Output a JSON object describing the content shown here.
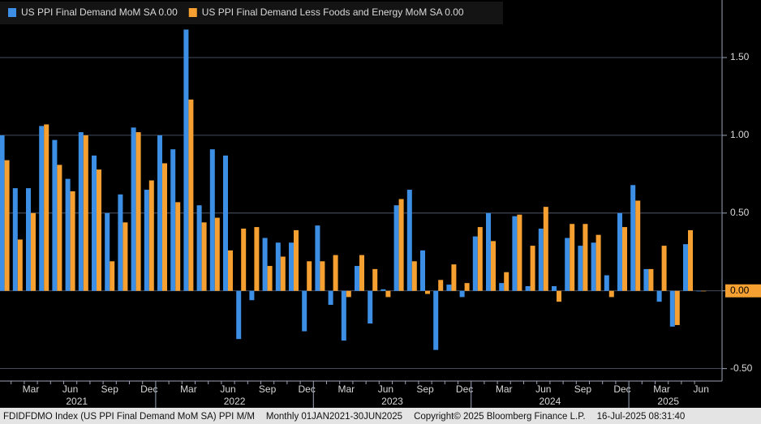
{
  "chart_data": {
    "type": "bar",
    "categories": [
      null,
      null,
      "Mar",
      null,
      null,
      "Jun",
      null,
      null,
      "Sep",
      null,
      null,
      "Dec",
      null,
      null,
      "Mar",
      null,
      null,
      "Jun",
      null,
      null,
      "Sep",
      null,
      null,
      "Dec",
      null,
      null,
      "Mar",
      null,
      null,
      "Jun",
      null,
      null,
      "Sep",
      null,
      null,
      "Dec",
      null,
      null,
      "Mar",
      null,
      null,
      "Jun",
      null,
      null,
      "Sep",
      null,
      null,
      "Dec",
      null,
      null,
      "Mar",
      null,
      null,
      "Jun"
    ],
    "years": [
      "2021",
      "2022",
      "2023",
      "2024",
      "2025"
    ],
    "series": [
      {
        "name": "US PPI Final Demand MoM SA 0.00",
        "color": "#3d8fe6",
        "values": [
          1.0,
          0.66,
          0.66,
          1.06,
          0.97,
          0.72,
          1.02,
          0.87,
          0.5,
          0.62,
          1.05,
          0.65,
          1.0,
          0.91,
          1.68,
          0.55,
          0.91,
          0.87,
          -0.31,
          -0.06,
          0.34,
          0.31,
          0.31,
          -0.26,
          0.42,
          -0.09,
          -0.32,
          0.16,
          -0.21,
          0.01,
          0.55,
          0.65,
          0.26,
          -0.38,
          0.04,
          -0.04,
          0.35,
          0.5,
          0.05,
          0.48,
          0.03,
          0.4,
          0.03,
          0.34,
          0.29,
          0.31,
          0.1,
          0.5,
          0.68,
          0.14,
          -0.07,
          -0.23,
          0.3,
          0.0
        ]
      },
      {
        "name": "US PPI Final Demand Less Foods and Energy MoM SA 0.00",
        "color": "#f5a030",
        "values": [
          0.84,
          0.33,
          0.5,
          1.07,
          0.81,
          0.64,
          1.0,
          0.78,
          0.19,
          0.44,
          1.02,
          0.71,
          0.82,
          0.57,
          1.23,
          0.44,
          0.47,
          0.26,
          0.4,
          0.41,
          0.16,
          0.22,
          0.39,
          0.19,
          0.19,
          0.23,
          -0.04,
          0.23,
          0.14,
          -0.04,
          0.59,
          0.19,
          -0.02,
          0.07,
          0.17,
          0.05,
          0.41,
          0.32,
          0.12,
          0.49,
          0.29,
          0.54,
          -0.07,
          0.43,
          0.43,
          0.36,
          -0.04,
          0.41,
          0.58,
          0.14,
          0.29,
          -0.22,
          0.39,
          0.0
        ]
      }
    ],
    "ylim": [
      -0.58,
      1.87
    ],
    "yticks": [
      {
        "value": -0.5,
        "label": "-0.50"
      },
      {
        "value": 0,
        "label": "0.00"
      },
      {
        "value": 0.5,
        "label": "0.50"
      },
      {
        "value": 1,
        "label": "1.00"
      },
      {
        "value": 1.5,
        "label": "1.50"
      }
    ],
    "grid": true,
    "footer": [
      "FDIDFDMO Index (US PPI Final Demand MoM SA) PPI M/M",
      "Monthly 01JAN2021-30JUN2025",
      "Copyright© 2025 Bloomberg Finance L.P.",
      "16-Jul-2025 08:31:40"
    ]
  }
}
